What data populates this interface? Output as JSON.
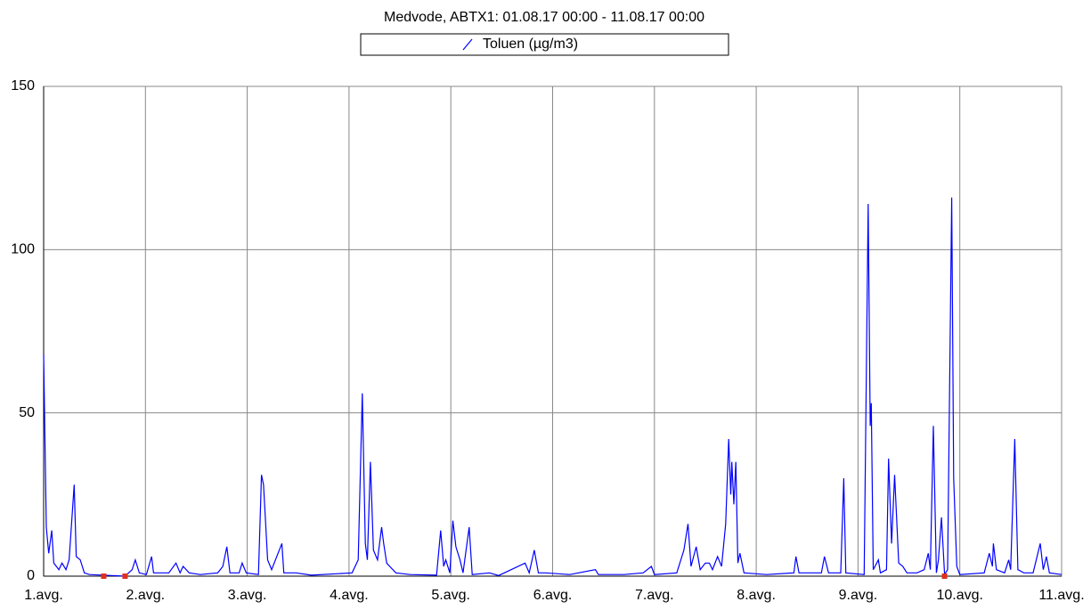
{
  "chart_data": {
    "type": "line",
    "title": "Medvode, ABTX1: 01.08.17 00:00 - 11.08.17 00:00",
    "xlim": [
      0,
      10
    ],
    "xticks": [
      {
        "value": 0,
        "label": "1.avg."
      },
      {
        "value": 1,
        "label": "2.avg."
      },
      {
        "value": 2,
        "label": "3.avg."
      },
      {
        "value": 3,
        "label": "4.avg."
      },
      {
        "value": 4,
        "label": "5.avg."
      },
      {
        "value": 5,
        "label": "6.avg."
      },
      {
        "value": 6,
        "label": "7.avg."
      },
      {
        "value": 7,
        "label": "8.avg."
      },
      {
        "value": 8,
        "label": "9.avg."
      },
      {
        "value": 9,
        "label": "10.avg."
      },
      {
        "value": 10,
        "label": "11.avg."
      }
    ],
    "ylim": [
      0,
      150
    ],
    "yticks": [
      0,
      50,
      100,
      150
    ],
    "grid": true,
    "x": [
      0,
      0.026,
      0.05,
      0.08,
      0.1,
      0.15,
      0.18,
      0.22,
      0.25,
      0.3,
      0.32,
      0.36,
      0.4,
      0.45,
      0.8,
      0.87,
      0.9,
      0.94,
      1.01,
      1.06,
      1.08,
      1.23,
      1.3,
      1.34,
      1.37,
      1.43,
      1.54,
      1.71,
      1.76,
      1.8,
      1.83,
      1.92,
      1.95,
      1.99,
      2.11,
      2.14,
      2.16,
      2.2,
      2.24,
      2.34,
      2.36,
      2.48,
      2.63,
      3.03,
      3.09,
      3.13,
      3.16,
      3.18,
      3.21,
      3.24,
      3.28,
      3.32,
      3.34,
      3.37,
      3.4,
      3.46,
      3.6,
      3.86,
      3.9,
      3.93,
      3.95,
      3.99,
      4.02,
      4.05,
      4.09,
      4.12,
      4.18,
      4.21,
      4.38,
      4.47,
      4.73,
      4.77,
      4.82,
      4.86,
      4.93,
      5.17,
      5.42,
      5.45,
      5.7,
      5.89,
      5.97,
      6.0,
      6.22,
      6.29,
      6.33,
      6.36,
      6.41,
      6.45,
      6.5,
      6.54,
      6.57,
      6.62,
      6.66,
      6.7,
      6.73,
      6.75,
      6.76,
      6.78,
      6.8,
      6.82,
      6.84,
      6.88,
      7.1,
      7.37,
      7.39,
      7.42,
      7.64,
      7.67,
      7.71,
      7.83,
      7.86,
      7.88,
      8.06,
      8.1,
      8.12,
      8.13,
      8.15,
      8.2,
      8.22,
      8.28,
      8.3,
      8.33,
      8.36,
      8.4,
      8.44,
      8.48,
      8.58,
      8.65,
      8.69,
      8.71,
      8.74,
      8.77,
      8.79,
      8.82,
      8.85,
      8.88,
      8.92,
      8.94,
      8.97,
      9.0,
      9.24,
      9.29,
      9.32,
      9.33,
      9.36,
      9.44,
      9.48,
      9.5,
      9.54,
      9.57,
      9.63,
      9.72,
      9.79,
      9.82,
      9.85,
      9.88,
      10.0
    ],
    "series": [
      {
        "name": "Toluen (µg/m3)",
        "color": "#0000ff",
        "values": [
          68,
          15,
          7,
          14,
          4,
          2,
          4,
          2,
          5,
          28,
          6,
          5,
          1,
          0.5,
          0,
          2,
          5,
          1,
          0.5,
          6,
          1,
          1,
          4,
          1,
          3,
          1,
          0.5,
          1,
          3,
          9,
          1,
          1,
          4,
          1,
          0.5,
          31,
          28,
          5,
          2,
          10,
          1,
          1,
          0.3,
          1,
          5,
          56,
          10,
          5,
          35,
          8,
          5,
          15,
          10,
          4,
          3,
          1,
          0.5,
          0.3,
          14,
          3,
          5,
          1,
          17,
          9,
          5,
          1,
          15,
          0.5,
          1,
          0.2,
          4,
          1,
          8,
          1,
          1,
          0.5,
          2,
          0.5,
          0.5,
          1,
          3,
          0.5,
          1,
          8,
          16,
          3,
          9,
          2,
          4,
          4,
          2,
          6,
          3,
          16,
          42,
          25,
          35,
          22,
          35,
          4,
          7,
          1,
          0.5,
          1,
          6,
          1,
          1,
          6,
          1,
          1,
          30,
          1,
          0.5,
          114,
          46,
          53,
          2,
          5,
          1,
          2,
          36,
          10,
          31,
          4,
          3,
          1,
          1,
          2,
          7,
          2,
          46,
          1,
          5,
          18,
          0.5,
          2,
          116,
          30,
          3,
          0.5,
          1,
          7,
          3,
          10,
          2,
          1,
          5,
          2,
          42,
          2,
          1,
          1,
          10,
          2,
          6,
          1,
          0.5
        ]
      }
    ],
    "missing_markers": {
      "color": "#e0301e",
      "x": [
        0.59,
        0.8,
        8.85
      ]
    }
  }
}
